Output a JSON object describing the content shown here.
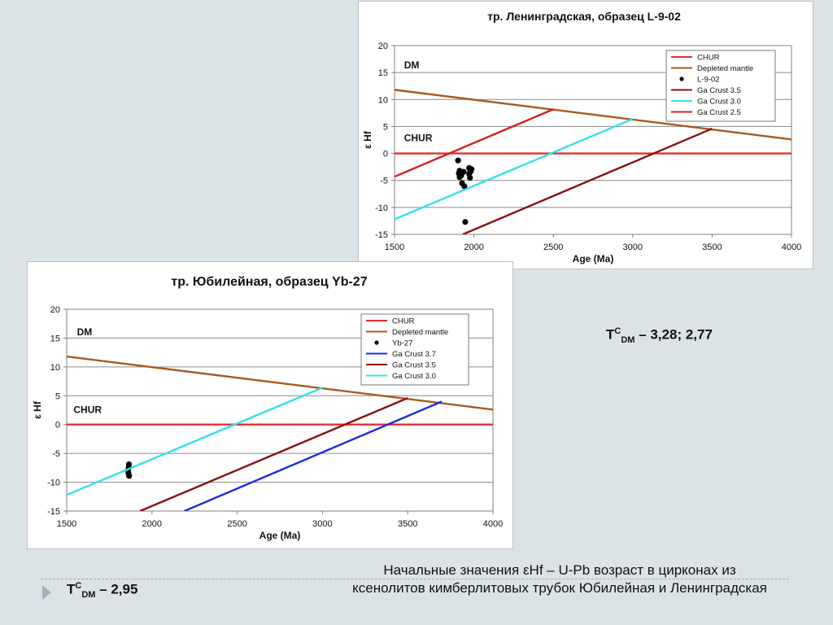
{
  "chart_data": [
    {
      "type": "line",
      "title": "тр. Ленинградская, образец L-9-02",
      "xlabel": "Age (Ma)",
      "ylabel": "ε Hf",
      "xlim": [
        1500,
        4000
      ],
      "ylim": [
        -15,
        20
      ],
      "x_ticks": [
        "1500",
        "2000",
        "2500",
        "3000",
        "3500",
        "4000"
      ],
      "y_ticks": [
        "20",
        "15",
        "10",
        "5",
        "0",
        "-5",
        "-10",
        "-15"
      ],
      "grid": "horizontal",
      "legend_position": "top-right",
      "annotations": [
        {
          "text": "DM",
          "x": 1560,
          "y": 15.8
        },
        {
          "text": "CHUR",
          "x": 1560,
          "y": 2.3
        }
      ],
      "series": [
        {
          "name": "CHUR",
          "kind": "line",
          "color": "#e03030",
          "x": [
            1500,
            4000
          ],
          "y": [
            0,
            0
          ]
        },
        {
          "name": "Depleted mantle",
          "kind": "line",
          "color": "#a85a1e",
          "x": [
            1500,
            4000
          ],
          "y": [
            11.8,
            2.6
          ]
        },
        {
          "name": "L-9-02",
          "kind": "scatter",
          "color": "#000000",
          "x": [
            1900,
            1910,
            1905,
            1920,
            1925,
            1940,
            1935,
            1970,
            1975,
            1980,
            1970,
            1985,
            1975,
            1915,
            1910,
            1945
          ],
          "y": [
            -1.3,
            -3.2,
            -3.7,
            -4.1,
            -5.5,
            -6.1,
            -3.4,
            -2.7,
            -3.0,
            -3.3,
            -3.8,
            -2.9,
            -4.5,
            -3.5,
            -4.4,
            -12.7
          ]
        },
        {
          "name": "Ga Crust 3.5",
          "kind": "line",
          "color": "#8b1010",
          "x": [
            1930,
            3500
          ],
          "y": [
            -15,
            4.6
          ]
        },
        {
          "name": "Ga Crust 3.0",
          "kind": "line",
          "color": "#33e0ee",
          "x": [
            1500,
            3000
          ],
          "y": [
            -12.2,
            6.4
          ]
        },
        {
          "name": "Ga Crust 2.5",
          "kind": "line",
          "color": "#d42020",
          "x": [
            1500,
            2500
          ],
          "y": [
            -4.3,
            8.2
          ]
        }
      ]
    },
    {
      "type": "line",
      "title": "тр. Юбилейная, образец Yb-27",
      "xlabel": "Age (Ma)",
      "ylabel": "ε Hf",
      "xlim": [
        1500,
        4000
      ],
      "ylim": [
        -15,
        20
      ],
      "x_ticks": [
        "1500",
        "2000",
        "2500",
        "3000",
        "3500",
        "4000"
      ],
      "y_ticks": [
        "20",
        "15",
        "10",
        "5",
        "0",
        "-5",
        "-10",
        "-15"
      ],
      "grid": "horizontal",
      "legend_position": "top-right",
      "annotations": [
        {
          "text": "DM",
          "x": 1560,
          "y": 15.5
        },
        {
          "text": "CHUR",
          "x": 1540,
          "y": 2.0
        }
      ],
      "series": [
        {
          "name": "CHUR",
          "kind": "line",
          "color": "#e03030",
          "x": [
            1500,
            4000
          ],
          "y": [
            0,
            0
          ]
        },
        {
          "name": "Depleted mantle",
          "kind": "line",
          "color": "#a85a1e",
          "x": [
            1500,
            4000
          ],
          "y": [
            11.8,
            2.6
          ]
        },
        {
          "name": "Yb-27",
          "kind": "scatter",
          "color": "#000000",
          "x": [
            1865,
            1860,
            1862,
            1866,
            1864
          ],
          "y": [
            -6.9,
            -7.9,
            -8.4,
            -8.9,
            -7.4
          ]
        },
        {
          "name": "Ga Crust 3.7",
          "kind": "line",
          "color": "#1a2ee0",
          "x": [
            2190,
            3700
          ],
          "y": [
            -15,
            4.0
          ]
        },
        {
          "name": "Ga Crust 3.5",
          "kind": "line",
          "color": "#8b1010",
          "x": [
            1930,
            3500
          ],
          "y": [
            -15,
            4.6
          ]
        },
        {
          "name": "Ga Crust 3.0",
          "kind": "line",
          "color": "#33e0ee",
          "x": [
            1500,
            3000
          ],
          "y": [
            -12.2,
            6.4
          ]
        }
      ]
    }
  ],
  "notes": {
    "tdm_top": {
      "prefix": "T",
      "sup": "C",
      "sub": "DM",
      "value": " – 3,28; 2,77"
    },
    "tdm_bottom": {
      "prefix": "T",
      "sup": "C",
      "sub": "DM",
      "value": " – 2,95"
    }
  },
  "caption": {
    "line1": "Начальные значения εHf – U-Pb возраст в цирконах из",
    "line2": "ксенолитов кимберлитовых трубок Юбилейная и Ленинградская"
  },
  "colors": {
    "background": "#dce3e6",
    "accent": "#9fb4bf"
  }
}
